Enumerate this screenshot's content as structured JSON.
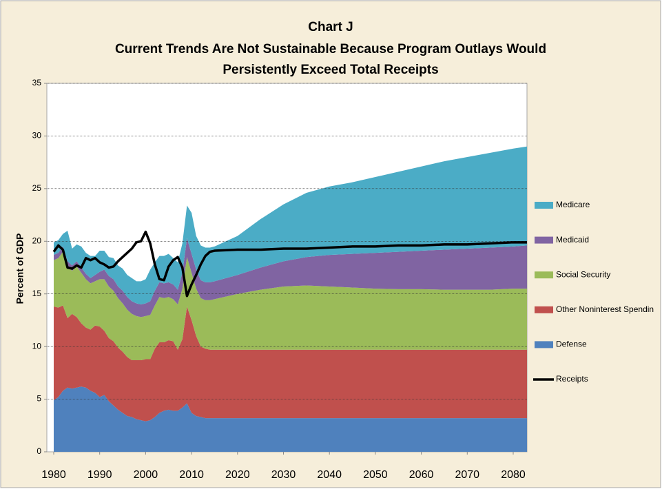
{
  "chart_data": {
    "type": "area",
    "title": "Chart J",
    "subtitle": [
      "Current Trends Are Not Sustainable Because Program Outlays Would",
      "Persistently Exceed Total Receipts"
    ],
    "ylabel": "Percent of GDP",
    "x": [
      1980,
      1981,
      1982,
      1983,
      1984,
      1985,
      1986,
      1987,
      1988,
      1989,
      1990,
      1991,
      1992,
      1993,
      1994,
      1995,
      1996,
      1997,
      1998,
      1999,
      2000,
      2001,
      2002,
      2003,
      2004,
      2005,
      2006,
      2007,
      2008,
      2009,
      2010,
      2011,
      2012,
      2013,
      2014,
      2015,
      2020,
      2025,
      2030,
      2035,
      2040,
      2045,
      2050,
      2055,
      2060,
      2065,
      2070,
      2075,
      2080,
      2083
    ],
    "series": [
      {
        "name": "Defense",
        "type": "area",
        "color": "#4f81bd",
        "values": [
          4.9,
          5.2,
          5.8,
          6.1,
          6.0,
          6.1,
          6.2,
          6.1,
          5.8,
          5.6,
          5.2,
          5.4,
          4.8,
          4.4,
          4.0,
          3.7,
          3.4,
          3.3,
          3.1,
          3.0,
          2.9,
          3.0,
          3.3,
          3.7,
          3.9,
          4.0,
          3.9,
          3.9,
          4.2,
          4.6,
          3.7,
          3.4,
          3.3,
          3.2,
          3.2,
          3.2,
          3.2,
          3.2,
          3.2,
          3.2,
          3.2,
          3.2,
          3.2,
          3.2,
          3.2,
          3.2,
          3.2,
          3.2,
          3.2,
          3.2
        ]
      },
      {
        "name": "Other Noninterest Spendin",
        "type": "area",
        "color": "#c0504d",
        "values": [
          8.9,
          8.5,
          8.1,
          6.6,
          7.1,
          6.7,
          6.0,
          5.7,
          5.8,
          6.4,
          6.7,
          6.1,
          6.0,
          6.1,
          5.9,
          5.8,
          5.6,
          5.4,
          5.6,
          5.7,
          5.9,
          5.8,
          6.5,
          6.7,
          6.5,
          6.6,
          6.6,
          5.8,
          6.5,
          9.2,
          8.8,
          7.6,
          6.7,
          6.6,
          6.5,
          6.5,
          6.5,
          6.5,
          6.5,
          6.5,
          6.5,
          6.5,
          6.5,
          6.5,
          6.5,
          6.5,
          6.5,
          6.5,
          6.5,
          6.5
        ]
      },
      {
        "name": "Social Security",
        "type": "area",
        "color": "#9bbb59",
        "values": [
          4.4,
          4.7,
          5.1,
          4.9,
          4.1,
          4.8,
          4.8,
          4.6,
          4.4,
          4.2,
          4.5,
          4.9,
          4.9,
          4.8,
          4.7,
          4.6,
          4.5,
          4.4,
          4.2,
          4.1,
          4.1,
          4.2,
          4.1,
          4.3,
          4.2,
          4.1,
          4.0,
          4.3,
          4.8,
          4.7,
          4.5,
          4.5,
          4.6,
          4.6,
          4.7,
          4.8,
          5.3,
          5.7,
          6.0,
          6.1,
          6.0,
          5.9,
          5.8,
          5.75,
          5.75,
          5.7,
          5.7,
          5.7,
          5.8,
          5.8
        ]
      },
      {
        "name": "Medicaid",
        "type": "area",
        "color": "#8064a2",
        "values": [
          0.5,
          0.5,
          0.5,
          0.5,
          0.5,
          0.5,
          0.5,
          0.5,
          0.5,
          0.6,
          0.7,
          0.9,
          1.0,
          1.1,
          1.1,
          1.2,
          1.2,
          1.2,
          1.2,
          1.2,
          1.2,
          1.3,
          1.4,
          1.4,
          1.4,
          1.4,
          1.4,
          1.4,
          1.5,
          1.8,
          1.8,
          1.8,
          1.7,
          1.7,
          1.7,
          1.7,
          1.8,
          2.1,
          2.4,
          2.7,
          3.0,
          3.2,
          3.4,
          3.55,
          3.65,
          3.8,
          3.9,
          4.0,
          4.0,
          4.1
        ]
      },
      {
        "name": "Medicare",
        "type": "area",
        "color": "#4bacc6",
        "values": [
          1.2,
          1.2,
          1.2,
          2.9,
          1.6,
          1.6,
          2.0,
          2.0,
          2.1,
          1.8,
          2.0,
          1.8,
          1.8,
          2.0,
          2.0,
          2.1,
          2.1,
          2.2,
          2.1,
          2.2,
          2.3,
          3.0,
          2.7,
          2.5,
          2.6,
          2.7,
          2.5,
          2.6,
          2.8,
          3.1,
          3.9,
          3.2,
          3.3,
          3.3,
          3.3,
          3.3,
          3.7,
          4.6,
          5.4,
          6.1,
          6.5,
          6.8,
          7.2,
          7.6,
          8.0,
          8.4,
          8.7,
          9.0,
          9.3,
          9.4
        ]
      },
      {
        "name": "Receipts",
        "type": "line",
        "color": "#000000",
        "values": [
          19.0,
          19.6,
          19.2,
          17.5,
          17.4,
          17.7,
          17.5,
          18.4,
          18.2,
          18.4,
          18.0,
          17.8,
          17.5,
          17.6,
          18.1,
          18.5,
          18.9,
          19.3,
          19.9,
          20.0,
          20.9,
          19.8,
          17.8,
          16.4,
          16.3,
          17.6,
          18.2,
          18.5,
          17.5,
          14.8,
          15.9,
          16.8,
          17.8,
          18.6,
          19.0,
          19.1,
          19.2,
          19.2,
          19.3,
          19.3,
          19.4,
          19.5,
          19.5,
          19.6,
          19.6,
          19.7,
          19.7,
          19.8,
          19.9,
          19.9
        ]
      }
    ],
    "xlim": [
      1978.5,
      2083
    ],
    "xticks": [
      1980,
      1990,
      2000,
      2010,
      2020,
      2030,
      2040,
      2050,
      2060,
      2070,
      2080
    ],
    "ylim": [
      0,
      35
    ],
    "yticks": [
      0,
      5,
      10,
      15,
      20,
      25,
      30,
      35
    ],
    "grid": true,
    "legend": "right"
  }
}
